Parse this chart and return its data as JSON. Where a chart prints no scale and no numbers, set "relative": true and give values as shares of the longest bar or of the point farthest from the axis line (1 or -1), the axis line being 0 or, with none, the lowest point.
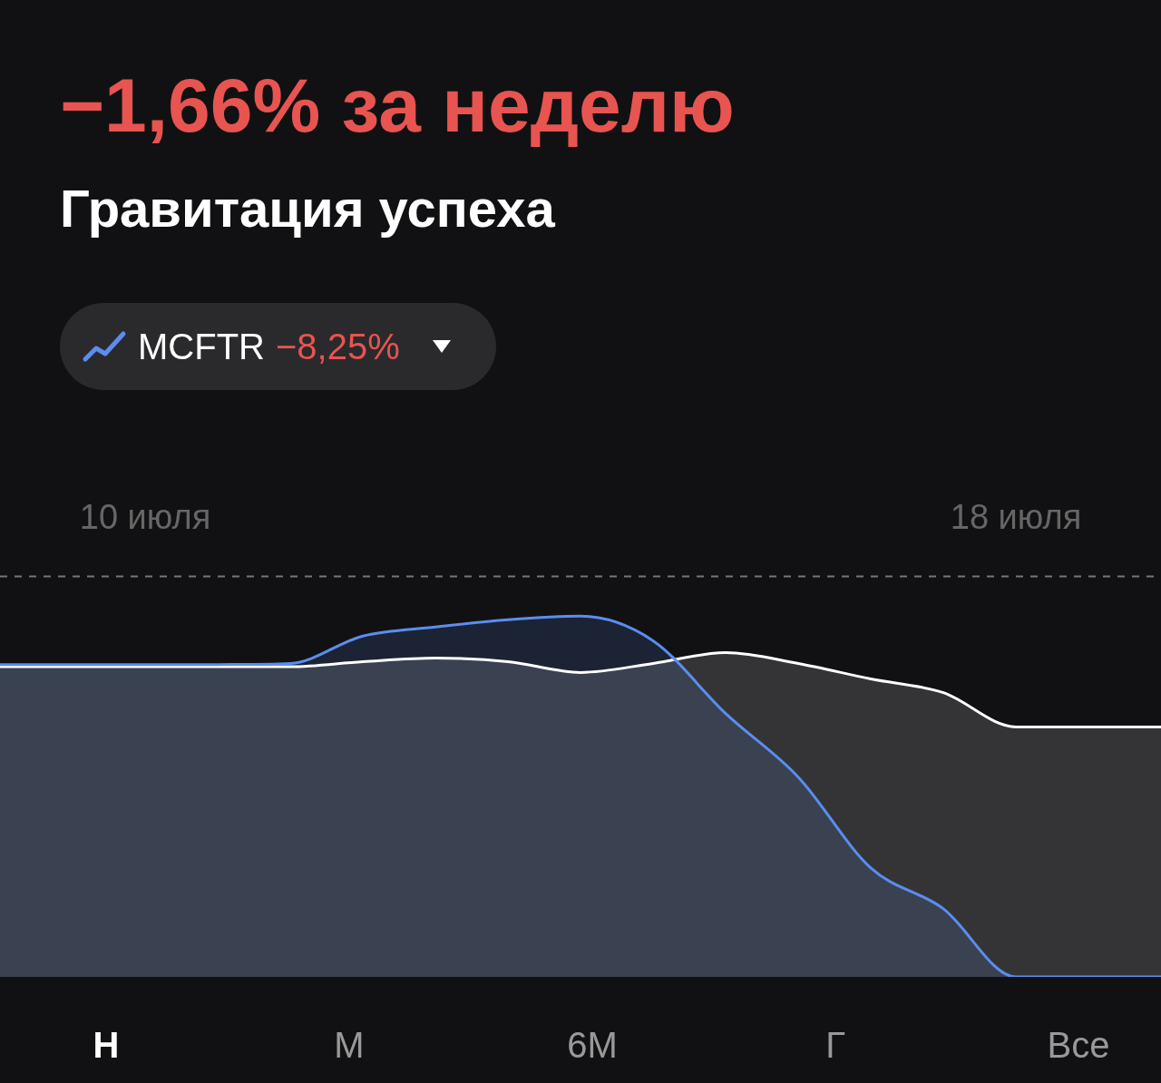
{
  "chart_data": {
    "type": "area",
    "title": "−1,66% за неделю",
    "subtitle": "Гравитация успеха",
    "relative": true,
    "categories": [
      null,
      null,
      "10 июля",
      null,
      null,
      null,
      null,
      null,
      null,
      null,
      null,
      null,
      null,
      null,
      "18 июля",
      null,
      null
    ],
    "series": [
      {
        "color": "#ffffff",
        "values": [
          0.86,
          0.86,
          0.86,
          0.86,
          0.86,
          0.874,
          0.884,
          0.874,
          0.844,
          0.869,
          0.899,
          0.869,
          0.826,
          0.788,
          0.693,
          0.693,
          0.693
        ]
      },
      {
        "name": "MCFTR",
        "color": "#5b8def",
        "values": [
          0.866,
          0.866,
          0.866,
          0.866,
          0.869,
          0.945,
          0.97,
          0.99,
          1,
          0.932,
          0.73,
          0.554,
          0.302,
          0.189,
          0,
          0,
          0
        ]
      }
    ],
    "annotations": [
      "−8,25%",
      "Н",
      "М",
      "6М",
      "Г",
      "Все"
    ],
    "ref_lines": [
      {
        "axis": "y",
        "value": 1.11,
        "color": "#777777",
        "line_style": "dashed"
      }
    ],
    "legend": "top left",
    "grid": false,
    "marker": "none",
    "line_style": "solid"
  }
}
